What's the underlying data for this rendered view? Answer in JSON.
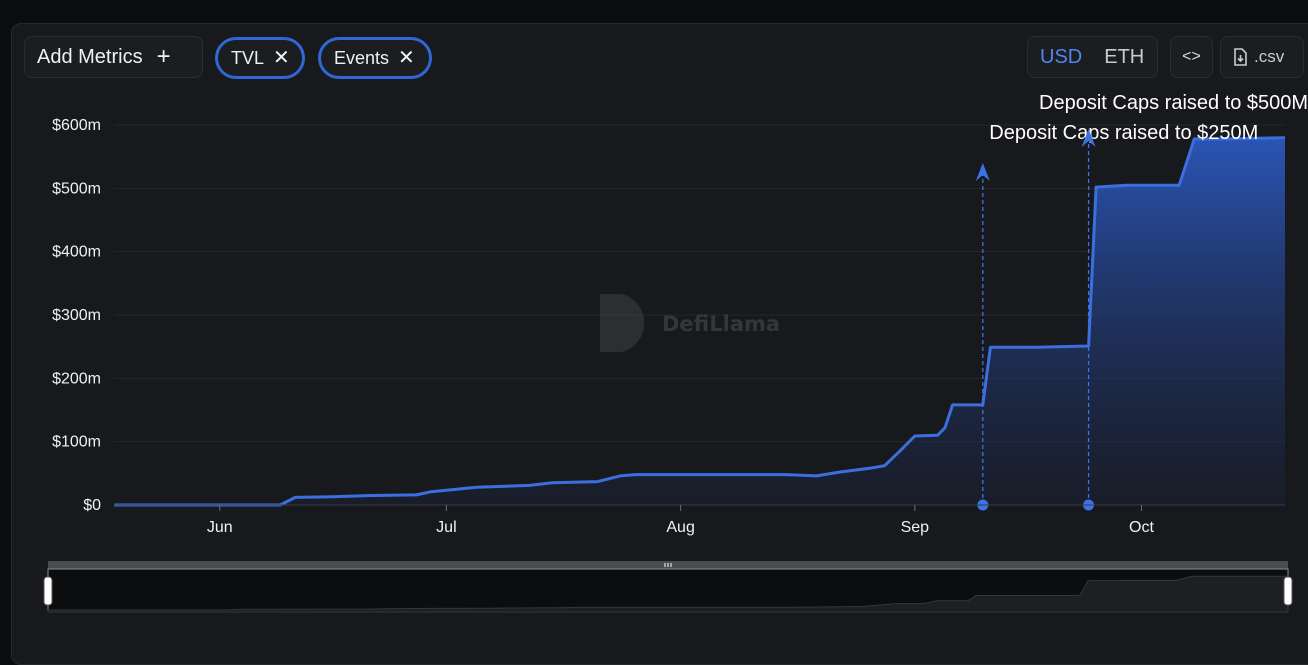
{
  "toolbar": {
    "add_metrics_label": "Add Metrics",
    "add_metrics_icon": "plus-icon",
    "pills": [
      {
        "label": "TVL",
        "icon": "close-icon"
      },
      {
        "label": "Events",
        "icon": "close-icon"
      }
    ],
    "currency": {
      "options": [
        "USD",
        "ETH"
      ],
      "selected": "USD"
    },
    "embed_icon": "code-icon",
    "csv_label": ".csv",
    "csv_icon": "file-download-icon"
  },
  "watermark": "DefiLlama",
  "colors": {
    "accent": "#3b73e6",
    "line": "#3b6fe0",
    "active": "#4f86ec",
    "background": "#18191c"
  },
  "chart_data": {
    "type": "area",
    "title": "",
    "xlabel": "",
    "ylabel": "",
    "x_range": [
      "2024-05-18",
      "2024-10-20"
    ],
    "ylim": [
      0,
      600
    ],
    "y_unit": "millions USD",
    "y_ticks": [
      "$0",
      "$100m",
      "$200m",
      "$300m",
      "$400m",
      "$500m",
      "$600m"
    ],
    "x_ticks": [
      {
        "label": "Jun",
        "date": "2024-06-01"
      },
      {
        "label": "Jul",
        "date": "2024-07-01"
      },
      {
        "label": "Aug",
        "date": "2024-08-01"
      },
      {
        "label": "Sep",
        "date": "2024-09-01"
      },
      {
        "label": "Oct",
        "date": "2024-10-01"
      }
    ],
    "grid": true,
    "legend": "none",
    "series": [
      {
        "values": [
          [
            "2024-05-18",
            0
          ],
          [
            "2024-06-09",
            0
          ],
          [
            "2024-06-11",
            12
          ],
          [
            "2024-06-16",
            13
          ],
          [
            "2024-06-21",
            15
          ],
          [
            "2024-06-27",
            16
          ],
          [
            "2024-06-29",
            21
          ],
          [
            "2024-07-05",
            28
          ],
          [
            "2024-07-12",
            31
          ],
          [
            "2024-07-15",
            35
          ],
          [
            "2024-07-21",
            37
          ],
          [
            "2024-07-24",
            46
          ],
          [
            "2024-07-26",
            48
          ],
          [
            "2024-08-05",
            48
          ],
          [
            "2024-08-15",
            48
          ],
          [
            "2024-08-19",
            46
          ],
          [
            "2024-08-22",
            52
          ],
          [
            "2024-08-26",
            58
          ],
          [
            "2024-08-28",
            62
          ],
          [
            "2024-08-30",
            85
          ],
          [
            "2024-09-01",
            109
          ],
          [
            "2024-09-04",
            110
          ],
          [
            "2024-09-05",
            122
          ],
          [
            "2024-09-06",
            158
          ],
          [
            "2024-09-10",
            158
          ],
          [
            "2024-09-11",
            249
          ],
          [
            "2024-09-17",
            249
          ],
          [
            "2024-09-24",
            251
          ],
          [
            "2024-09-25",
            502
          ],
          [
            "2024-09-29",
            505
          ],
          [
            "2024-10-06",
            505
          ],
          [
            "2024-10-08",
            578
          ],
          [
            "2024-10-12",
            578
          ],
          [
            "2024-10-20",
            580
          ]
        ]
      }
    ],
    "annotations": [
      {
        "date": "2024-09-10",
        "label": "Deposit Caps raised to $250M"
      },
      {
        "date": "2024-09-24",
        "label": "Deposit Caps raised to $500M"
      }
    ],
    "zoom_range": [
      0,
      1
    ]
  }
}
